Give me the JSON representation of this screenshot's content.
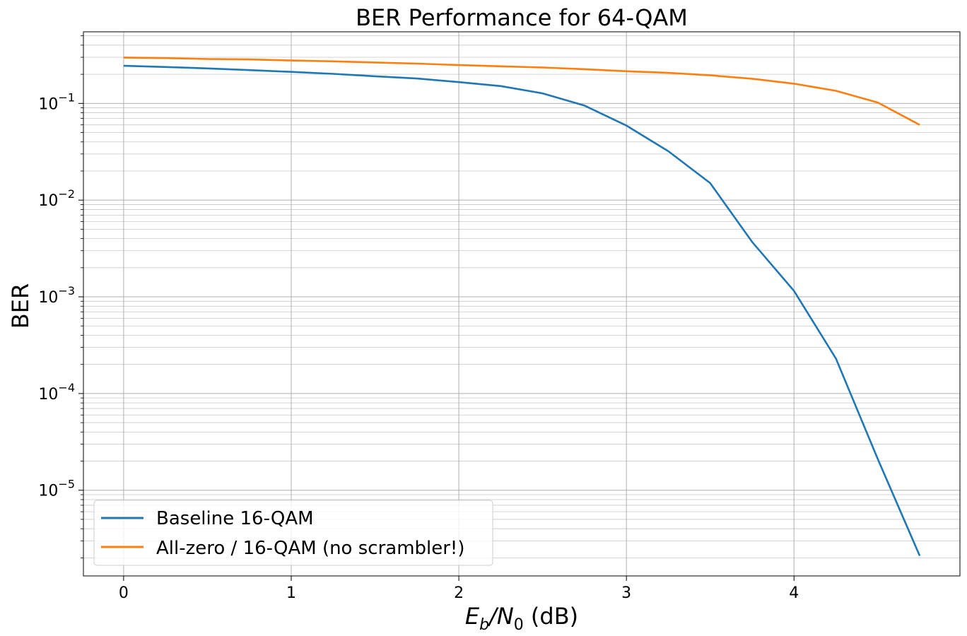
{
  "chart_data": {
    "type": "line",
    "title": "BER Performance for 64-QAM",
    "xlabel": {
      "base": "E",
      "sub1": "b",
      "mid": "/N",
      "sub2": "0",
      "suffix": " (dB)"
    },
    "ylabel": "BER",
    "xlim": [
      -0.24,
      4.99
    ],
    "ylim": [
      1.3e-06,
      0.55
    ],
    "yscale": "log",
    "grid": {
      "major": true,
      "minor_y": true
    },
    "xticks": [
      {
        "value": 0,
        "label": "0"
      },
      {
        "value": 1,
        "label": "1"
      },
      {
        "value": 2,
        "label": "2"
      },
      {
        "value": 3,
        "label": "3"
      },
      {
        "value": 4,
        "label": "4"
      }
    ],
    "yticks": [
      {
        "value": 1e-05,
        "base": "10",
        "exp": "−5"
      },
      {
        "value": 0.0001,
        "base": "10",
        "exp": "−4"
      },
      {
        "value": 0.001,
        "base": "10",
        "exp": "−3"
      },
      {
        "value": 0.01,
        "base": "10",
        "exp": "−2"
      },
      {
        "value": 0.1,
        "base": "10",
        "exp": "−1"
      }
    ],
    "legend_position": "lower-left",
    "series": [
      {
        "name": "Baseline 16-QAM",
        "color": "#1f77b4",
        "x": [
          0,
          0.25,
          0.5,
          0.75,
          1,
          1.25,
          1.5,
          1.75,
          2,
          2.25,
          2.5,
          2.75,
          3,
          3.25,
          3.5,
          3.75,
          4,
          4.25,
          4.5,
          4.75
        ],
        "y": [
          0.245,
          0.238,
          0.23,
          0.221,
          0.212,
          0.202,
          0.191,
          0.181,
          0.166,
          0.151,
          0.127,
          0.095,
          0.059,
          0.032,
          0.015,
          0.0037,
          0.00115,
          0.00023,
          2.1e-05,
          2.1e-06
        ]
      },
      {
        "name": "All-zero / 16-QAM (no scrambler!)",
        "color": "#ff7f0e",
        "x": [
          0,
          0.25,
          0.5,
          0.75,
          1,
          1.25,
          1.5,
          1.75,
          2,
          2.25,
          2.5,
          2.75,
          3,
          3.25,
          3.5,
          3.75,
          4,
          4.25,
          4.5,
          4.75
        ],
        "y": [
          0.298,
          0.294,
          0.288,
          0.285,
          0.278,
          0.272,
          0.265,
          0.258,
          0.249,
          0.242,
          0.235,
          0.226,
          0.215,
          0.207,
          0.195,
          0.18,
          0.16,
          0.135,
          0.102,
          0.06
        ]
      }
    ]
  }
}
